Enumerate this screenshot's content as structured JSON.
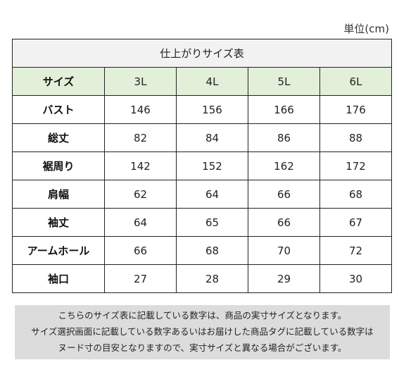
{
  "unit_label": "単位(cm)",
  "table": {
    "caption": "仕上がりサイズ表",
    "header_label": "サイズ",
    "sizes": [
      "3L",
      "4L",
      "5L",
      "6L"
    ],
    "rows": [
      {
        "label": "バスト",
        "values": [
          "146",
          "156",
          "166",
          "176"
        ]
      },
      {
        "label": "総丈",
        "values": [
          "82",
          "84",
          "86",
          "88"
        ]
      },
      {
        "label": "裾周り",
        "values": [
          "142",
          "152",
          "162",
          "172"
        ]
      },
      {
        "label": "肩幅",
        "values": [
          "62",
          "64",
          "66",
          "68"
        ]
      },
      {
        "label": "袖丈",
        "values": [
          "64",
          "65",
          "66",
          "67"
        ]
      },
      {
        "label": "アームホール",
        "values": [
          "66",
          "68",
          "70",
          "72"
        ]
      },
      {
        "label": "袖口",
        "values": [
          "27",
          "28",
          "29",
          "30"
        ]
      }
    ]
  },
  "notice": {
    "lines": [
      "こちらのサイズ表に記載している数字は、商品の実寸サイズとなります。",
      "サイズ選択画面に記載している数字あるいはお届けした商品タグに記載している数字は",
      "ヌード寸の目安となりますので、実寸サイズと異なる場合がございます。"
    ]
  },
  "colors": {
    "header_bg": "#e2efd9",
    "caption_bg": "#f2f2f2",
    "notice_bg": "#dcdcdc",
    "border": "#222222"
  }
}
